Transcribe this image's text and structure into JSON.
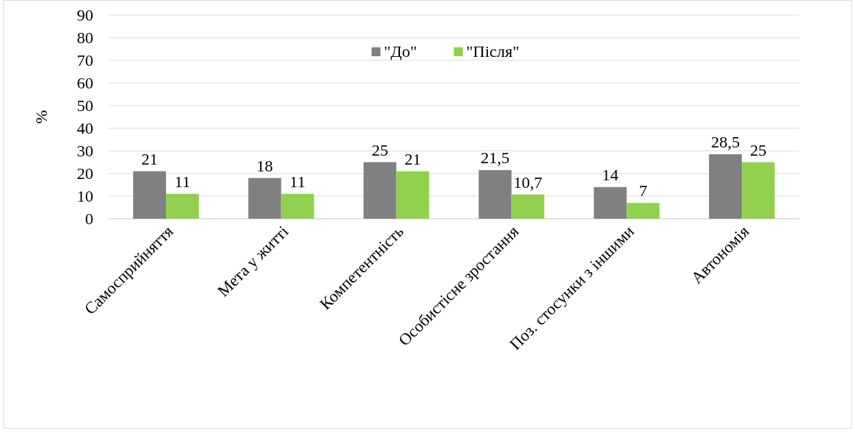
{
  "chart_data": {
    "type": "bar",
    "ylabel": "%",
    "categories": [
      "Самосприйняття",
      "Мета у житті",
      "Компетентність",
      "Особистісне зростання",
      "Поз. стосунки з іншими",
      "Автономія"
    ],
    "series": [
      {
        "name": "\"До\"",
        "color": "#808080",
        "values": [
          21,
          18,
          25,
          21.5,
          14,
          28.5
        ],
        "value_labels": [
          "21",
          "18",
          "25",
          "21,5",
          "14",
          "28,5"
        ]
      },
      {
        "name": "\"Після\"",
        "color": "#92d050",
        "values": [
          11,
          11,
          21,
          10.7,
          7,
          25
        ],
        "value_labels": [
          "11",
          "11",
          "21",
          "10,7",
          "7",
          "25"
        ]
      }
    ],
    "ylim": [
      0,
      90
    ],
    "yticks": [
      0,
      10,
      20,
      30,
      40,
      50,
      60,
      70,
      80,
      90
    ],
    "grid": "y",
    "legend": "top"
  }
}
